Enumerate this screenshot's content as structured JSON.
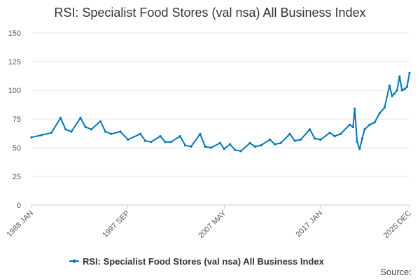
{
  "chart_data": {
    "type": "line",
    "title": "RSI: Specialist Food Stores (val nsa) All Business Index",
    "xlabel": "",
    "ylabel": "",
    "ylim": [
      0,
      150
    ],
    "y_ticks": [
      "0",
      "25",
      "50",
      "75",
      "100",
      "125",
      "150"
    ],
    "x_range": [
      "1988 JAN",
      "2025 DEC"
    ],
    "x_tick_labels": [
      "1988 JAN",
      "1997 SEP",
      "2007 MAY",
      "2017 JAN",
      "2025 DEC"
    ],
    "grid": "horizontal",
    "legend_position": "bottom",
    "color": "#0077b5",
    "series": [
      {
        "name": "RSI: Specialist Food Stores (val nsa) All Business Index",
        "points": [
          [
            "1988-01",
            59
          ],
          [
            "1989-01",
            61
          ],
          [
            "1990-01",
            63
          ],
          [
            "1990-12",
            76
          ],
          [
            "1991-06",
            66
          ],
          [
            "1992-01",
            64
          ],
          [
            "1992-12",
            76
          ],
          [
            "1993-06",
            68
          ],
          [
            "1994-01",
            66
          ],
          [
            "1994-12",
            73
          ],
          [
            "1995-06",
            64
          ],
          [
            "1996-01",
            62
          ],
          [
            "1996-12",
            64
          ],
          [
            "1997-09",
            57
          ],
          [
            "1998-12",
            62
          ],
          [
            "1999-06",
            56
          ],
          [
            "2000-01",
            55
          ],
          [
            "2000-12",
            60
          ],
          [
            "2001-06",
            55
          ],
          [
            "2002-01",
            55
          ],
          [
            "2002-12",
            60
          ],
          [
            "2003-06",
            52
          ],
          [
            "2004-01",
            51
          ],
          [
            "2004-12",
            62
          ],
          [
            "2005-06",
            51
          ],
          [
            "2006-01",
            50
          ],
          [
            "2006-12",
            54
          ],
          [
            "2007-05",
            49
          ],
          [
            "2007-12",
            53
          ],
          [
            "2008-06",
            48
          ],
          [
            "2009-01",
            47
          ],
          [
            "2009-12",
            54
          ],
          [
            "2010-06",
            51
          ],
          [
            "2011-01",
            52
          ],
          [
            "2011-12",
            57
          ],
          [
            "2012-06",
            53
          ],
          [
            "2013-01",
            54
          ],
          [
            "2013-12",
            62
          ],
          [
            "2014-06",
            56
          ],
          [
            "2015-01",
            57
          ],
          [
            "2015-12",
            66
          ],
          [
            "2016-06",
            58
          ],
          [
            "2017-01",
            57
          ],
          [
            "2017-12",
            63
          ],
          [
            "2018-06",
            60
          ],
          [
            "2019-01",
            62
          ],
          [
            "2019-12",
            70
          ],
          [
            "2020-04",
            68
          ],
          [
            "2020-06",
            84
          ],
          [
            "2020-09",
            55
          ],
          [
            "2020-12",
            49
          ],
          [
            "2021-03",
            58
          ],
          [
            "2021-06",
            66
          ],
          [
            "2021-12",
            70
          ],
          [
            "2022-06",
            72
          ],
          [
            "2022-12",
            80
          ],
          [
            "2023-06",
            85
          ],
          [
            "2023-12",
            104
          ],
          [
            "2024-03",
            95
          ],
          [
            "2024-06",
            97
          ],
          [
            "2024-09",
            100
          ],
          [
            "2024-12",
            112
          ],
          [
            "2025-03",
            100
          ],
          [
            "2025-06",
            101
          ],
          [
            "2025-09",
            103
          ],
          [
            "2025-12",
            115
          ]
        ]
      }
    ]
  },
  "legend": {
    "label": "RSI: Specialist Food Stores (val nsa) All Business Index"
  },
  "footer": {
    "source_label": "Source:"
  }
}
